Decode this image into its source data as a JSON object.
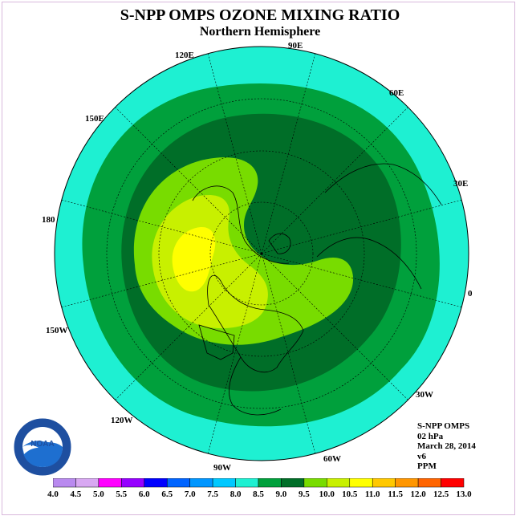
{
  "title": "S-NPP OMPS OZONE MIXING RATIO",
  "subtitle": "Northern Hemisphere",
  "longitude_labels": [
    "90E",
    "60E",
    "30E",
    "0",
    "30W",
    "60W",
    "90W",
    "120W",
    "150W",
    "180",
    "150E",
    "120E"
  ],
  "info": {
    "instrument": "S-NPP OMPS",
    "pressure_level": "02 hPa",
    "date": "March 28, 2014",
    "version": "v6",
    "units": "PPM"
  },
  "logo_text": "NOAA",
  "colorbar": {
    "labels": [
      "4.0",
      "4.5",
      "5.0",
      "5.5",
      "6.0",
      "6.5",
      "7.0",
      "7.5",
      "8.0",
      "8.5",
      "9.0",
      "9.5",
      "10.0",
      "10.5",
      "11.0",
      "11.5",
      "12.0",
      "12.5",
      "13.0"
    ],
    "colors": [
      "#b98aef",
      "#d8a8f2",
      "#ff00ff",
      "#9600ff",
      "#0000ff",
      "#0064ff",
      "#0096ff",
      "#00c8ff",
      "#1ef0d2",
      "#00a03c",
      "#006e28",
      "#78dc00",
      "#c8f000",
      "#ffff00",
      "#ffc800",
      "#ff9600",
      "#ff6400",
      "#ff0000",
      "#8b5a2b"
    ]
  },
  "map_colors": {
    "outer_band": "#1ef0d2",
    "band_8_0": "#00a03c",
    "band_8_5": "#006e28",
    "band_9_0": "#78dc00",
    "band_9_5": "#c8f000",
    "band_10_0": "#ffff00"
  }
}
